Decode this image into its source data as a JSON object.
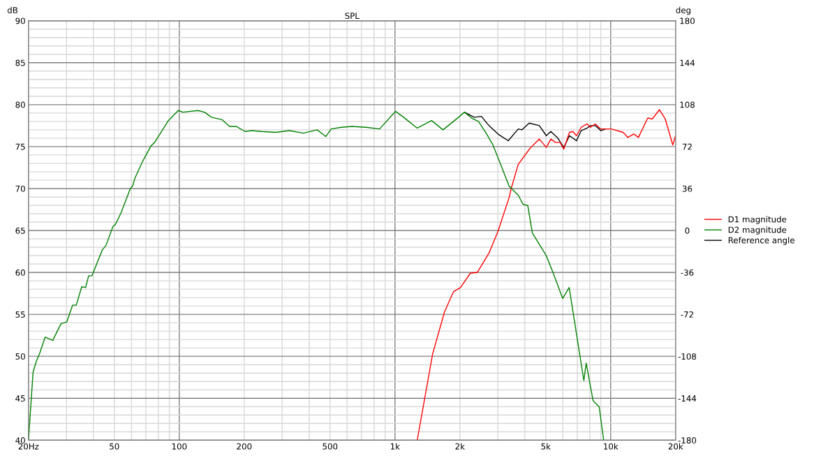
{
  "chart_data": {
    "type": "line",
    "title": "SPL",
    "ylabel": "dB",
    "y2label": "deg",
    "log": "x",
    "xlim": [
      20,
      20000
    ],
    "xticks": [
      {
        "value": 20,
        "label": "20Hz"
      },
      50,
      100,
      200,
      500,
      {
        "value": 1000,
        "label": "1k"
      },
      {
        "value": 2000,
        "label": "2k"
      },
      {
        "value": 5000,
        "label": "5k"
      },
      {
        "value": 10000,
        "label": "10k"
      },
      {
        "value": 20000,
        "label": "20k"
      }
    ],
    "ylim": [
      40,
      90
    ],
    "yticks": [
      40,
      45,
      50,
      55,
      60,
      65,
      70,
      75,
      80,
      85,
      90
    ],
    "y2lim": [
      -180,
      180
    ],
    "y2ticks": [
      -180,
      -144,
      -108,
      -72,
      -36,
      0,
      36,
      72,
      108,
      144,
      180
    ],
    "grid": true,
    "legend": "right",
    "line_style": "solid",
    "marker": "none",
    "series": [
      {
        "name": "Reference angle",
        "color": "#000000",
        "x": [
          2100,
          2330,
          2515,
          2727,
          3002,
          3350,
          3730,
          3880,
          4190,
          4670,
          5030,
          5280,
          5690,
          6060,
          6440,
          6940,
          7300,
          7770,
          8060,
          8480,
          9000,
          9460
        ],
        "values": [
          79.1,
          78.5,
          78.6,
          77.5,
          76.5,
          75.7,
          77.1,
          77.0,
          77.8,
          77.5,
          76.3,
          76.8,
          76.0,
          74.9,
          76.3,
          75.7,
          76.9,
          77.2,
          77.5,
          77.5,
          76.9,
          77.1
        ]
      },
      {
        "name": "D1 magnitude",
        "color": "#ff0000",
        "x": [
          1268,
          1495,
          1697,
          1867,
          2013,
          2234,
          2407,
          2727,
          3002,
          3380,
          3466,
          3730,
          4230,
          4670,
          5030,
          5280,
          5550,
          5830,
          6060,
          6440,
          6680,
          6940,
          7300,
          7770,
          8060,
          8480,
          9000,
          9460,
          10070,
          11430,
          12020,
          12800,
          13450,
          14850,
          15600,
          16830,
          17900,
          19400,
          20000
        ],
        "values": [
          40.0,
          50.3,
          55.3,
          57.7,
          58.2,
          59.9,
          60.0,
          62.3,
          64.9,
          68.9,
          70.1,
          72.9,
          74.8,
          75.9,
          74.9,
          75.9,
          75.5,
          75.5,
          74.7,
          76.7,
          76.8,
          76.3,
          77.3,
          77.7,
          77.3,
          77.7,
          77.1,
          77.1,
          77.1,
          76.7,
          76.1,
          76.5,
          76.1,
          78.4,
          78.3,
          79.4,
          78.3,
          75.2,
          76.3
        ]
      },
      {
        "name": "D2 magnitude",
        "color": "#008000",
        "x": [
          20,
          21,
          21.8,
          22.5,
          23.9,
          25.9,
          28.3,
          30.1,
          32,
          33.3,
          35.3,
          36.8,
          38,
          39.4,
          44,
          45.7,
          49.3,
          50.5,
          53.7,
          59.3,
          60.8,
          62.2,
          67.8,
          74,
          76.9,
          89,
          98.9,
          104,
          122,
          131,
          141,
          158,
          171,
          184,
          202,
          217,
          241,
          280,
          324,
          376,
          436,
          478,
          506,
          565,
          633,
          733,
          849,
          1005,
          1097,
          1268,
          1478,
          1670,
          1867,
          2100,
          2265,
          2440,
          2630,
          2833,
          3055,
          3380,
          3730,
          3925,
          4125,
          4335,
          5030,
          5420,
          5990,
          6420,
          7510,
          7700,
          8290,
          8840,
          9280
        ],
        "values": [
          40.0,
          48.1,
          49.5,
          50.3,
          52.3,
          51.9,
          53.9,
          54.1,
          56.1,
          56.1,
          58.3,
          58.2,
          59.6,
          59.6,
          62.7,
          63.2,
          65.5,
          65.7,
          67.1,
          70.0,
          70.3,
          71.2,
          73.3,
          75.1,
          75.5,
          78.1,
          79.3,
          79.1,
          79.3,
          79.1,
          78.5,
          78.2,
          77.4,
          77.4,
          76.8,
          76.9,
          76.8,
          76.7,
          76.9,
          76.6,
          77.0,
          76.2,
          77.1,
          77.3,
          77.4,
          77.3,
          77.1,
          79.2,
          78.5,
          77.2,
          78.1,
          77.0,
          78.0,
          79.1,
          78.4,
          78.0,
          76.7,
          75.3,
          73.2,
          70.3,
          69.2,
          68.1,
          68.0,
          64.7,
          62.0,
          59.9,
          56.9,
          58.2,
          47.1,
          49.2,
          44.7,
          44.0,
          40.0
        ]
      }
    ]
  }
}
